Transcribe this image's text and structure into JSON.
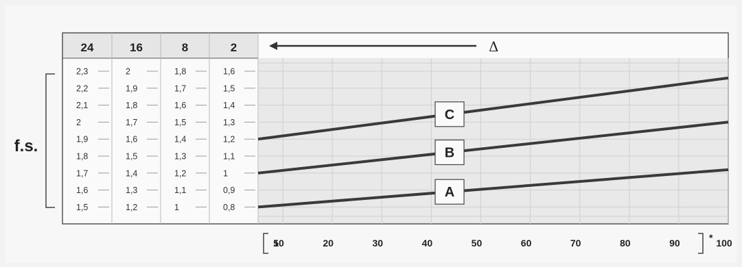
{
  "chart_data": {
    "type": "line",
    "y_label": "f.s.",
    "delta_label": "Δ",
    "x_suffix": "*",
    "columns": [
      {
        "header": "24",
        "values": [
          "2,3",
          "2,2",
          "2,1",
          "2",
          "1,9",
          "1,8",
          "1,7",
          "1,6",
          "1,5"
        ]
      },
      {
        "header": "16",
        "values": [
          "2",
          "1,9",
          "1,8",
          "1,7",
          "1,6",
          "1,5",
          "1,4",
          "1,3",
          "1,2"
        ]
      },
      {
        "header": "8",
        "values": [
          "1,8",
          "1,7",
          "1,6",
          "1,5",
          "1,4",
          "1,3",
          "1,2",
          "1,1",
          "1"
        ]
      },
      {
        "header": "2",
        "values": [
          "1,6",
          "1,5",
          "1,4",
          "1,3",
          "1,2",
          "1,1",
          "1",
          "0,9",
          "0,8"
        ]
      }
    ],
    "x_ticks": [
      5,
      10,
      20,
      30,
      40,
      50,
      60,
      70,
      80,
      90,
      100
    ],
    "xlim": [
      5,
      100
    ],
    "series": [
      {
        "name": "A",
        "y_col2": [
          0.8,
          1.02
        ]
      },
      {
        "name": "B",
        "y_col2": [
          1.0,
          1.3
        ]
      },
      {
        "name": "C",
        "y_col2": [
          1.2,
          1.56
        ]
      }
    ],
    "colors": {
      "line": "#3a3a3a",
      "grid": "#cfcfcf",
      "frame": "#555555",
      "plot_bg": "#e9e9e9",
      "panel_bg": "#f7f7f7"
    }
  }
}
